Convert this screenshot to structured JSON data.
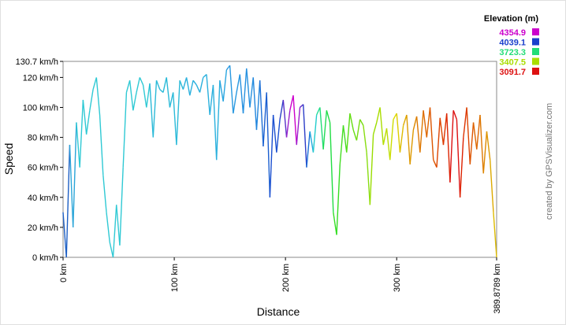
{
  "chart_data": {
    "type": "line",
    "title": "",
    "xlabel": "Distance",
    "ylabel": "Speed",
    "xlim": [
      0,
      389.8789
    ],
    "ylim": [
      0,
      130.7
    ],
    "x_ticks": [
      {
        "value": 0,
        "label": "0 km"
      },
      {
        "value": 100,
        "label": "100 km"
      },
      {
        "value": 200,
        "label": "200 km"
      },
      {
        "value": 300,
        "label": "300 km"
      },
      {
        "value": 389.8789,
        "label": "389.8789 km"
      }
    ],
    "y_ticks": [
      {
        "value": 0,
        "label": "0 km/h"
      },
      {
        "value": 20,
        "label": "20 km/h"
      },
      {
        "value": 40,
        "label": "40 km/h"
      },
      {
        "value": 60,
        "label": "60 km/h"
      },
      {
        "value": 80,
        "label": "80 km/h"
      },
      {
        "value": 100,
        "label": "100 km/h"
      },
      {
        "value": 120,
        "label": "120 km/h"
      },
      {
        "value": 130.7,
        "label": "130.7 km/h"
      }
    ],
    "grid": false,
    "legend_position": "top-right",
    "color_scale": {
      "title": "Elevation (m)",
      "entries": [
        {
          "label": "4354.9",
          "color": "#cc00cc"
        },
        {
          "label": "4039.1",
          "color": "#1a3fcc"
        },
        {
          "label": "3723.3",
          "color": "#22dd77"
        },
        {
          "label": "3407.5",
          "color": "#aadd00"
        },
        {
          "label": "3091.7",
          "color": "#dd1111"
        }
      ]
    },
    "series": [
      {
        "x": [
          0,
          3,
          6,
          9,
          12,
          15,
          18,
          21,
          24,
          27,
          30,
          33,
          36,
          39,
          42,
          45,
          48,
          51,
          54,
          57,
          60,
          63,
          66,
          69,
          72,
          75,
          78,
          81,
          84,
          87,
          90,
          93,
          96,
          99,
          102,
          105,
          108,
          111,
          114,
          117,
          120,
          123,
          126,
          129,
          132,
          135,
          138,
          141,
          144,
          147,
          150,
          153,
          156,
          159,
          162,
          165,
          168,
          171,
          174,
          177,
          180,
          183,
          186,
          189,
          192,
          195,
          198,
          201,
          204,
          207,
          210,
          213,
          216,
          219,
          222,
          225,
          228,
          231,
          234,
          237,
          240,
          243,
          246,
          249,
          252,
          255,
          258,
          261,
          264,
          267,
          270,
          273,
          276,
          279,
          282,
          285,
          288,
          291,
          294,
          297,
          300,
          303,
          306,
          309,
          312,
          315,
          318,
          321,
          324,
          327,
          330,
          333,
          336,
          339,
          342,
          345,
          348,
          351,
          354,
          357,
          360,
          363,
          366,
          369,
          372,
          375,
          378,
          381,
          384,
          387,
          389.8789
        ],
        "y": [
          30,
          0,
          75,
          20,
          90,
          60,
          105,
          82,
          98,
          112,
          120,
          95,
          55,
          30,
          10,
          0,
          35,
          8,
          60,
          110,
          118,
          98,
          110,
          120,
          115,
          100,
          116,
          80,
          118,
          112,
          110,
          120,
          100,
          110,
          75,
          118,
          112,
          120,
          108,
          118,
          115,
          110,
          120,
          122,
          95,
          115,
          65,
          118,
          104,
          125,
          128,
          96,
          110,
          122,
          96,
          126,
          100,
          120,
          85,
          118,
          74,
          110,
          40,
          95,
          70,
          92,
          105,
          80,
          98,
          108,
          75,
          100,
          102,
          60,
          84,
          70,
          95,
          100,
          72,
          98,
          90,
          30,
          15,
          62,
          88,
          70,
          96,
          85,
          78,
          92,
          88,
          70,
          35,
          82,
          90,
          100,
          75,
          86,
          65,
          92,
          96,
          70,
          88,
          95,
          62,
          85,
          94,
          70,
          98,
          80,
          100,
          65,
          60,
          93,
          75,
          96,
          50,
          98,
          92,
          40,
          80,
          100,
          62,
          90,
          72,
          95,
          56,
          84,
          65,
          30,
          0
        ],
        "elevation_colors": [
          "#1d5fc4",
          "#1d5fc4",
          "#2aa5d8",
          "#2aa5d8",
          "#2fc9d4",
          "#2fc9d4",
          "#2fc9d4",
          "#2fc9d4",
          "#2fc9d4",
          "#2fc9d4",
          "#2fc9d4",
          "#2fc9d4",
          "#2fc9d4",
          "#2fc9d4",
          "#2fc9d4",
          "#2fc9d4",
          "#2fc9d4",
          "#2fc9d4",
          "#2fc9d4",
          "#2fc9d4",
          "#2fc9d4",
          "#2fc9d4",
          "#2fc9d4",
          "#2fc9d4",
          "#2fc9d4",
          "#2fc9d4",
          "#2bbad8",
          "#2bbad8",
          "#2bbad8",
          "#2bbad8",
          "#2bbad8",
          "#2bbad8",
          "#2bbad8",
          "#2bbad8",
          "#2bbad8",
          "#2bbad8",
          "#2ab0dd",
          "#2ab0dd",
          "#2ab0dd",
          "#2ab0dd",
          "#2ab0dd",
          "#2ab0dd",
          "#2ab0dd",
          "#2ab0dd",
          "#2ab0dd",
          "#2ab0dd",
          "#2ab0dd",
          "#29a5e0",
          "#29a5e0",
          "#2898e0",
          "#2898e0",
          "#2898e0",
          "#2898e0",
          "#2590e0",
          "#2590e0",
          "#2590e0",
          "#2590e0",
          "#2286dd",
          "#2286dd",
          "#2070d6",
          "#1c5fd0",
          "#1c5fd0",
          "#1a4fd0",
          "#1a4fd0",
          "#1a4fd0",
          "#2d3ec8",
          "#5a2fc8",
          "#9a20cc",
          "#cc00cc",
          "#cc00cc",
          "#9a20cc",
          "#5a2fc8",
          "#2d3ec8",
          "#1a6fd8",
          "#20aadd",
          "#22cccc",
          "#22dd99",
          "#22dd77",
          "#22dd55",
          "#22dd44",
          "#22dd44",
          "#33dd22",
          "#33dd22",
          "#44dd22",
          "#44dd22",
          "#55dd11",
          "#66dd11",
          "#66dd11",
          "#77dd11",
          "#77dd11",
          "#88dd11",
          "#88dd11",
          "#99dd00",
          "#99dd00",
          "#aadd00",
          "#aadd00",
          "#bbdd00",
          "#bbdd00",
          "#ccdd00",
          "#dddd00",
          "#ddcc00",
          "#ddbb00",
          "#ddaa00",
          "#dd9900",
          "#dd9900",
          "#dd8800",
          "#dd7700",
          "#dd7700",
          "#dd6600",
          "#dd6600",
          "#dd5500",
          "#dd5500",
          "#dd4400",
          "#dd4400",
          "#dd3300",
          "#dd2200",
          "#dd1111",
          "#dd1111",
          "#dd1111",
          "#dd2200",
          "#dd3300",
          "#dd4400",
          "#dd5500",
          "#dd6600",
          "#dd6600",
          "#dd7700",
          "#dd8800",
          "#dd9900",
          "#ddaa00",
          "#ddbb00",
          "#ddcc00"
        ]
      }
    ]
  },
  "credit": "created by GPSVisualizer.com"
}
